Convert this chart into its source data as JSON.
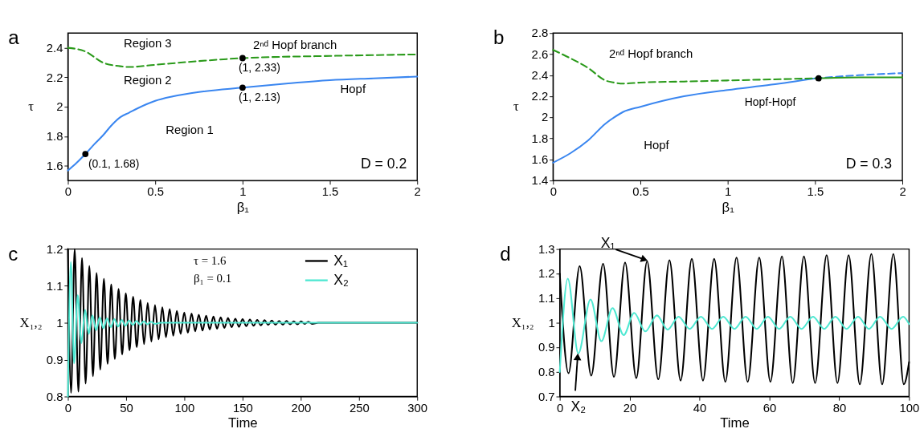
{
  "chart_data": [
    {
      "type": "line",
      "title": "a",
      "xlabel": "β₁",
      "ylabel": "τ",
      "xlim": [
        0,
        2
      ],
      "ylim": [
        1.5,
        2.5
      ],
      "xticks": [
        0,
        0.5,
        1,
        1.5,
        2
      ],
      "yticks": [
        1.6,
        1.8,
        2,
        2.2,
        2.4
      ],
      "series": [
        {
          "color": "#3a86f0",
          "line_style": "solid",
          "x": [
            0,
            0.05,
            0.1,
            0.15,
            0.2,
            0.25,
            0.3,
            0.35,
            0.4,
            0.5,
            0.6,
            0.75,
            1,
            1.25,
            1.5,
            1.75,
            2
          ],
          "values": [
            1.568,
            1.62,
            1.68,
            1.745,
            1.805,
            1.875,
            1.93,
            1.96,
            1.99,
            2.04,
            2.07,
            2.1,
            2.13,
            2.157,
            2.18,
            2.193,
            2.205
          ]
        },
        {
          "color": "#2a9a1a",
          "line_style": "dashed",
          "x": [
            0,
            0.1,
            0.2,
            0.3,
            0.35,
            0.5,
            0.75,
            1,
            1.5,
            2
          ],
          "values": [
            2.4,
            2.375,
            2.3,
            2.275,
            2.27,
            2.285,
            2.31,
            2.33,
            2.345,
            2.355
          ]
        },
        {
          "type": "scatter",
          "color": "#000000",
          "marker": "circle",
          "x": [
            0.1,
            1,
            1
          ],
          "values": [
            1.68,
            2.13,
            2.33
          ]
        }
      ],
      "annotations": [
        {
          "text": "(0.1, 1.68)",
          "x": 0.1,
          "y": 1.68
        },
        {
          "text": "(1, 2.13)",
          "x": 0.96,
          "y": 2.13
        },
        {
          "text": "(1, 2.33)",
          "x": 0.96,
          "y": 2.33
        },
        "Region 3",
        "Region 2",
        "Region 1",
        "2ⁿᵈ Hopf branch",
        "Hopf",
        "D = 0.2"
      ]
    },
    {
      "type": "line",
      "title": "b",
      "xlabel": "β₁",
      "ylabel": "τ",
      "xlim": [
        0,
        2
      ],
      "ylim": [
        1.4,
        2.8
      ],
      "xticks": [
        0,
        0.5,
        1,
        1.5,
        2
      ],
      "yticks": [
        1.4,
        1.6,
        1.8,
        2,
        2.2,
        2.4,
        2.6,
        2.8
      ],
      "series": [
        {
          "color": "#3a86f0",
          "line_style": "solid",
          "x": [
            0,
            0.1,
            0.2,
            0.3,
            0.35,
            0.4,
            0.5,
            0.75,
            1,
            1.25,
            1.5
          ],
          "values": [
            1.57,
            1.66,
            1.78,
            1.94,
            2,
            2.05,
            2.1,
            2.2,
            2.26,
            2.31,
            2.37
          ]
        },
        {
          "color": "#3a86f0",
          "line_style": "dashed",
          "x": [
            1.5,
            1.75,
            2
          ],
          "values": [
            2.37,
            2.4,
            2.42
          ]
        },
        {
          "color": "#2a9a1a",
          "line_style": "dashed",
          "x": [
            0,
            0.1,
            0.2,
            0.3,
            0.35,
            0.4,
            0.5,
            0.75,
            1,
            1.25,
            1.5
          ],
          "values": [
            2.64,
            2.56,
            2.47,
            2.35,
            2.33,
            2.32,
            2.33,
            2.34,
            2.35,
            2.36,
            2.37
          ]
        },
        {
          "color": "#2a9a1a",
          "line_style": "solid",
          "x": [
            1.5,
            1.75,
            2
          ],
          "values": [
            2.37,
            2.38,
            2.38
          ]
        },
        {
          "type": "scatter",
          "color": "#000000",
          "marker": "circle",
          "x": [
            1.52
          ],
          "values": [
            2.37
          ]
        }
      ],
      "annotations": [
        "2ⁿᵈ Hopf branch",
        {
          "text": "Hopf-Hopf",
          "x": 1.08,
          "y": 2.24
        },
        "Hopf",
        "D = 0.3"
      ]
    },
    {
      "type": "line",
      "title": "c",
      "xlabel": "Time",
      "ylabel": "X₁,₂",
      "xlim": [
        0,
        300
      ],
      "ylim": [
        0.8,
        1.2
      ],
      "xticks": [
        0,
        50,
        100,
        150,
        200,
        250,
        300
      ],
      "yticks": [
        0.8,
        0.9,
        1,
        1.1,
        1.2
      ],
      "legend": "top right",
      "series": [
        {
          "name": "X₁",
          "color": "#000000",
          "line_style": "solid",
          "x": [
            0,
            2.7,
            5.8,
            9.0,
            12.1,
            15.2,
            18.4,
            21.5,
            24.6,
            27.8,
            30.9,
            34.1,
            37.2,
            40.3,
            43.5,
            46.6,
            49.7,
            52.9,
            56.0,
            59.1,
            62.3,
            65.4,
            68.5,
            71.7,
            74.8,
            77.9,
            81.1,
            84.2,
            87.4,
            90.5,
            93.6,
            96.8,
            99.9,
            103.0,
            106.2,
            109.3,
            112.4,
            115.6,
            118.7,
            121.8,
            125.0,
            128.1,
            131.2,
            134.4,
            137.5,
            140.6,
            143.8,
            146.9,
            150.0,
            153.2,
            156.3,
            159.5,
            162.6,
            165.7,
            168.9,
            172.0,
            175.1,
            178.3,
            181.4,
            184.6,
            187.7,
            190.8,
            194.0,
            197.1,
            200.3,
            203.4,
            206.5,
            209.7,
            215,
            300
          ],
          "values": [
            1.2,
            0.81,
            1.2,
            0.813,
            1.176,
            0.835,
            1.154,
            0.855,
            1.135,
            0.873,
            1.119,
            0.889,
            1.104,
            0.902,
            1.092,
            0.914,
            1.08,
            0.925,
            1.071,
            0.934,
            1.062,
            0.942,
            1.054,
            0.949,
            1.048,
            0.955,
            1.042,
            0.961,
            1.037,
            0.965,
            1.032,
            0.97,
            1.028,
            0.973,
            1.025,
            0.977,
            1.022,
            0.979,
            1.019,
            0.982,
            1.017,
            0.984,
            1.015,
            0.986,
            1.013,
            0.988,
            1.011,
            0.989,
            1.01,
            0.991,
            1.009,
            0.992,
            1.008,
            0.993,
            1.007,
            0.994,
            1.006,
            0.995,
            1.005,
            0.995,
            1.005,
            0.996,
            1.004,
            0.996,
            1.004,
            0.997,
            1.003,
            0.997,
            1,
            1
          ]
        },
        {
          "name": "X₂",
          "color": "#4fe8d2",
          "line_style": "solid",
          "x": [
            0,
            2.5,
            5.3,
            8.4,
            11.6,
            14.8,
            17.9,
            21.0,
            24.2,
            27.3,
            30.5,
            33.6,
            36.8,
            39.9,
            43.1,
            46.2,
            49.4,
            52.5,
            55.7,
            58.8,
            62.0,
            65.1,
            68.3,
            71.4,
            74.6,
            80,
            300
          ],
          "values": [
            0.8,
            1.165,
            0.89,
            1.075,
            0.945,
            1.035,
            0.97,
            1.02,
            0.98,
            1.015,
            0.985,
            1.012,
            0.988,
            1.01,
            0.99,
            1.008,
            0.992,
            1.006,
            0.994,
            1.005,
            0.995,
            1.004,
            0.996,
            1.003,
            0.997,
            1,
            1
          ]
        }
      ],
      "annotations": [
        "τ = 1.6",
        "β₁ = 0.1"
      ]
    },
    {
      "type": "line",
      "title": "d",
      "xlabel": "Time",
      "ylabel": "X₁,₂",
      "xlim": [
        0,
        100
      ],
      "ylim": [
        0.7,
        1.3
      ],
      "xticks": [
        0,
        20,
        40,
        60,
        80,
        100
      ],
      "yticks": [
        0.7,
        0.8,
        0.9,
        1,
        1.1,
        1.2,
        1.3
      ],
      "series": [
        {
          "color": "#000000",
          "line_style": "solid",
          "x": [
            0,
            2.5,
            5.7,
            9.0,
            12.4,
            15.5,
            18.7,
            21.9,
            25.0,
            28.2,
            31.4,
            34.6,
            37.8,
            41.0,
            44.2,
            47.4,
            50.6,
            53.8,
            57.1,
            60.3,
            63.6,
            66.7,
            69.9,
            73.1,
            76.4,
            79.5,
            82.7,
            85.9,
            89.2,
            92.3,
            95.5,
            98.5,
            100
          ],
          "values": [
            1.2,
            0.795,
            1.23,
            0.785,
            1.24,
            0.78,
            1.245,
            0.775,
            1.25,
            0.77,
            1.255,
            0.765,
            1.26,
            0.765,
            1.26,
            0.76,
            1.265,
            0.76,
            1.265,
            0.76,
            1.27,
            0.755,
            1.27,
            0.755,
            1.275,
            0.755,
            1.275,
            0.75,
            1.28,
            0.75,
            1.28,
            0.75,
            0.84
          ]
        },
        {
          "color": "#4fe8d2",
          "line_style": "solid",
          "x": [
            0,
            2.3,
            5.3,
            8.8,
            11.9,
            15.1,
            18.3,
            21.3,
            24.5,
            27.8,
            30.9,
            34.0,
            37.2,
            40.4,
            43.6,
            46.8,
            50.0,
            53.2,
            56.4,
            59.6,
            62.8,
            66.0,
            69.2,
            72.5,
            75.7,
            78.9,
            82.1,
            85.4,
            88.5,
            91.7,
            95.0,
            98.3,
            100
          ],
          "values": [
            0.8,
            1.18,
            0.875,
            1.095,
            0.925,
            1.06,
            0.95,
            1.04,
            0.965,
            1.03,
            0.972,
            1.025,
            0.975,
            1.025,
            0.975,
            1.025,
            0.975,
            1.025,
            0.975,
            1.025,
            0.975,
            1.025,
            0.975,
            1.025,
            0.975,
            1.025,
            0.975,
            1.025,
            0.975,
            1.025,
            0.975,
            1.025,
            0.995
          ]
        }
      ],
      "annotations": [
        {
          "text": "X₁",
          "x": 25,
          "y": 1.25
        },
        {
          "text": "X₂",
          "x": 5.3,
          "y": 0.875
        }
      ]
    }
  ]
}
